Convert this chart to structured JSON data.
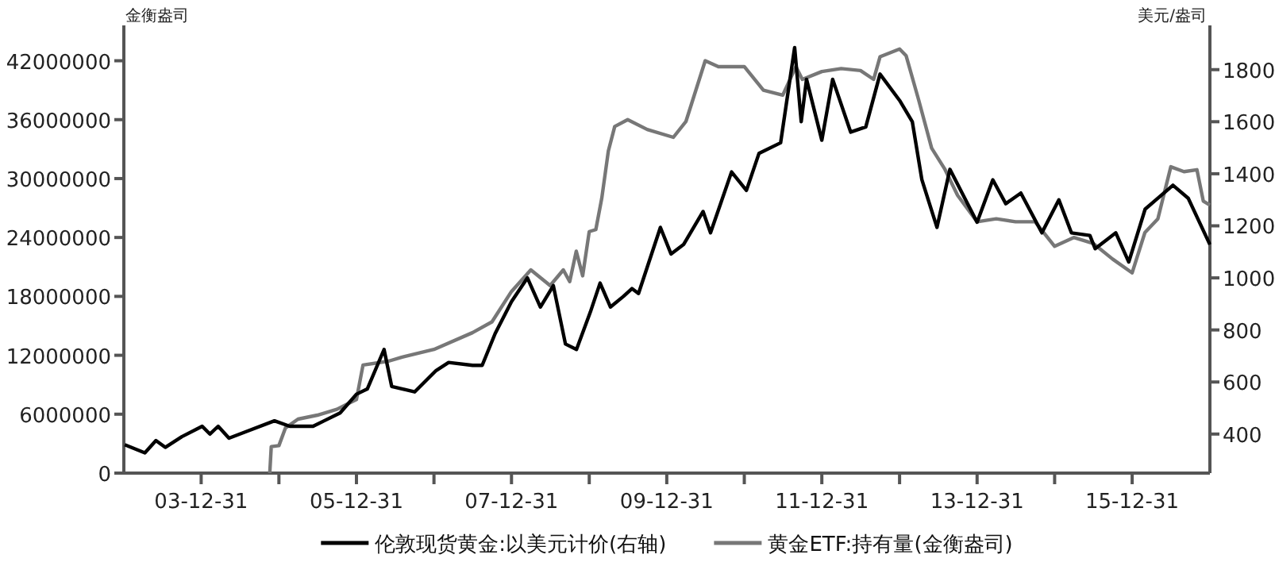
{
  "chart_data": {
    "type": "line",
    "ylabel": "金衡盎司",
    "y2label": "美元/盎司",
    "xlim": [
      "2003-01-01",
      "2016-12-31"
    ],
    "xticks": [
      {
        "value": "2003-12-31",
        "label": "03-12-31"
      },
      {
        "value": "2004-12-31",
        "label": null
      },
      {
        "value": "2005-12-31",
        "label": "05-12-31"
      },
      {
        "value": "2006-12-31",
        "label": null
      },
      {
        "value": "2007-12-31",
        "label": "07-12-31"
      },
      {
        "value": "2008-12-31",
        "label": null
      },
      {
        "value": "2009-12-31",
        "label": "09-12-31"
      },
      {
        "value": "2010-12-31",
        "label": null
      },
      {
        "value": "2011-12-31",
        "label": "11-12-31"
      },
      {
        "value": "2012-12-31",
        "label": null
      },
      {
        "value": "2013-12-31",
        "label": "13-12-31"
      },
      {
        "value": "2014-12-31",
        "label": null
      },
      {
        "value": "2015-12-31",
        "label": "15-12-31"
      }
    ],
    "ylim": [
      0,
      45600000
    ],
    "yticks": [
      0,
      6000000,
      12000000,
      18000000,
      24000000,
      30000000,
      36000000,
      42000000
    ],
    "y2lim": [
      250,
      1970
    ],
    "y2ticks": [
      400,
      600,
      800,
      1000,
      1200,
      1400,
      1600,
      1800
    ],
    "grid": false,
    "legend": "bottom",
    "series": [
      {
        "name": "伦敦现货黄金:以美元计价(右轴)",
        "color": "#000000",
        "axis": "y2",
        "x": [
          "2003-01-05",
          "2003-04-10",
          "2003-06-01",
          "2003-07-15",
          "2003-10-01",
          "2004-01-05",
          "2004-02-10",
          "2004-03-20",
          "2004-05-10",
          "2004-08-01",
          "2004-12-10",
          "2005-02-20",
          "2005-06-10",
          "2005-08-01",
          "2005-10-15",
          "2005-12-31",
          "2006-02-20",
          "2006-05-10",
          "2006-06-15",
          "2006-10-01",
          "2007-01-10",
          "2007-03-10",
          "2007-07-01",
          "2007-08-15",
          "2007-10-15",
          "2007-12-31",
          "2008-03-15",
          "2008-05-15",
          "2008-07-15",
          "2008-09-10",
          "2008-11-01",
          "2009-01-05",
          "2009-02-20",
          "2009-04-10",
          "2009-06-10",
          "2009-07-20",
          "2009-08-20",
          "2009-12-01",
          "2010-01-20",
          "2010-03-20",
          "2010-06-20",
          "2010-07-25",
          "2010-11-01",
          "2011-01-10",
          "2011-03-10",
          "2011-06-20",
          "2011-08-25",
          "2011-09-25",
          "2011-10-20",
          "2011-12-31",
          "2012-02-20",
          "2012-05-15",
          "2012-07-25",
          "2012-09-30",
          "2012-12-31",
          "2013-03-01",
          "2013-04-15",
          "2013-06-25",
          "2013-08-25",
          "2013-12-31",
          "2014-03-15",
          "2014-05-15",
          "2014-07-25",
          "2014-11-01",
          "2015-01-20",
          "2015-03-20",
          "2015-06-15",
          "2015-07-10",
          "2015-10-15",
          "2015-12-15",
          "2016-03-01",
          "2016-07-10",
          "2016-09-20",
          "2016-12-31"
        ],
        "values": [
          359,
          328,
          375,
          349,
          390,
          430,
          400,
          430,
          384,
          410,
          451,
          430,
          430,
          451,
          481,
          553,
          573,
          725,
          583,
          562,
          644,
          675,
          664,
          664,
          786,
          909,
          1000,
          888,
          970,
          746,
          725,
          868,
          980,
          888,
          929,
          959,
          940,
          1194,
          1092,
          1128,
          1255,
          1173,
          1407,
          1336,
          1478,
          1519,
          1885,
          1600,
          1763,
          1529,
          1763,
          1560,
          1580,
          1783,
          1682,
          1600,
          1377,
          1194,
          1417,
          1214,
          1377,
          1285,
          1326,
          1173,
          1300,
          1173,
          1163,
          1112,
          1173,
          1061,
          1264,
          1356,
          1306,
          1128
        ]
      },
      {
        "name": "黄金ETF:持有量(金衡盎司)",
        "color": "#777777",
        "x": [
          "2004-11-18",
          "2004-11-25",
          "2004-12-31",
          "2005-01-31",
          "2005-03-31",
          "2005-06-30",
          "2005-09-30",
          "2005-12-31",
          "2006-01-31",
          "2006-05-31",
          "2006-07-31",
          "2006-12-31",
          "2007-06-30",
          "2007-09-30",
          "2007-12-31",
          "2008-03-31",
          "2008-06-30",
          "2008-08-31",
          "2008-09-30",
          "2008-10-31",
          "2008-11-30",
          "2008-12-31",
          "2009-01-31",
          "2009-02-28",
          "2009-03-31",
          "2009-04-30",
          "2009-06-30",
          "2009-09-30",
          "2010-01-31",
          "2010-03-31",
          "2010-06-30",
          "2010-08-31",
          "2010-12-31",
          "2011-03-31",
          "2011-06-30",
          "2011-08-31",
          "2011-09-30",
          "2011-12-31",
          "2012-03-31",
          "2012-06-30",
          "2012-08-31",
          "2012-09-30",
          "2012-12-31",
          "2013-01-31",
          "2013-03-31",
          "2013-05-31",
          "2013-07-31",
          "2013-09-30",
          "2013-12-31",
          "2014-03-31",
          "2014-06-30",
          "2014-09-30",
          "2014-12-31",
          "2015-03-31",
          "2015-06-30",
          "2015-09-30",
          "2015-12-31",
          "2016-02-29",
          "2016-04-30",
          "2016-06-30",
          "2016-08-31",
          "2016-10-31",
          "2016-11-30",
          "2016-12-31"
        ],
        "values": [
          0,
          2700000,
          2800000,
          4600000,
          5500000,
          5900000,
          6500000,
          7500000,
          11000000,
          11400000,
          11800000,
          12600000,
          14300000,
          15400000,
          18500000,
          20700000,
          19100000,
          20700000,
          19500000,
          22600000,
          20100000,
          24600000,
          24800000,
          28000000,
          32800000,
          35300000,
          36000000,
          35000000,
          34200000,
          35800000,
          42000000,
          41400000,
          41400000,
          39000000,
          38500000,
          41400000,
          40100000,
          40900000,
          41200000,
          41000000,
          40100000,
          42400000,
          43200000,
          42500000,
          38000000,
          33100000,
          31000000,
          28300000,
          25600000,
          25900000,
          25600000,
          25600000,
          23100000,
          24000000,
          23400000,
          21800000,
          20400000,
          24500000,
          25900000,
          31200000,
          30700000,
          30900000,
          27700000,
          27300000
        ]
      }
    ]
  }
}
